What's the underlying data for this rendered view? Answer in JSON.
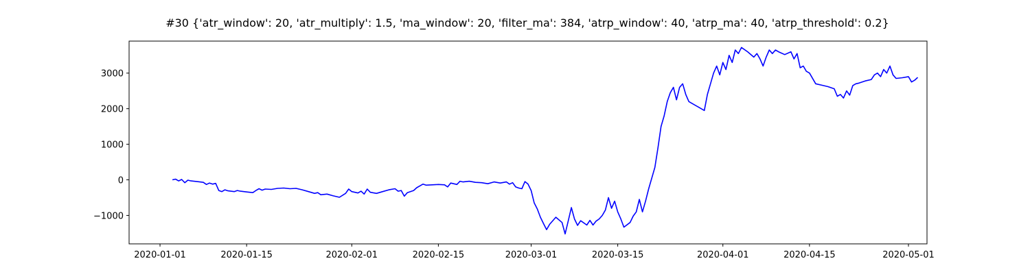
{
  "chart_data": {
    "type": "line",
    "title": "#30 {'atr_window': 20, 'atr_multiply': 1.5, 'ma_window': 20, 'filter_ma': 384, 'atrp_window': 40, 'atrp_ma': 40, 'atrp_threshold': 0.2}",
    "xlabel": "",
    "ylabel": "",
    "grid": false,
    "legend": "none",
    "xlim": [
      "2019-12-27",
      "2020-05-04"
    ],
    "ylim": [
      -1800,
      3900
    ],
    "xticks": [
      "2020-01-01",
      "2020-01-15",
      "2020-02-01",
      "2020-02-15",
      "2020-03-01",
      "2020-03-15",
      "2020-04-01",
      "2020-04-15",
      "2020-05-01"
    ],
    "yticks": [
      -1000,
      0,
      1000,
      2000,
      3000
    ],
    "ytick_labels": [
      "−1000",
      "0",
      "1000",
      "2000",
      "3000"
    ],
    "series": [
      {
        "color": "#0000ff",
        "points": [
          [
            "2020-01-03",
            0
          ],
          [
            "2020-01-03T12",
            20
          ],
          [
            "2020-01-04",
            -30
          ],
          [
            "2020-01-04T12",
            10
          ],
          [
            "2020-01-05",
            -80
          ],
          [
            "2020-01-05T12",
            -10
          ],
          [
            "2020-01-06",
            -30
          ],
          [
            "2020-01-07",
            -50
          ],
          [
            "2020-01-08",
            -70
          ],
          [
            "2020-01-08T12",
            -130
          ],
          [
            "2020-01-09",
            -90
          ],
          [
            "2020-01-09T12",
            -120
          ],
          [
            "2020-01-10",
            -100
          ],
          [
            "2020-01-10T12",
            -300
          ],
          [
            "2020-01-11",
            -330
          ],
          [
            "2020-01-11T12",
            -280
          ],
          [
            "2020-01-12",
            -310
          ],
          [
            "2020-01-13",
            -330
          ],
          [
            "2020-01-13T12",
            -300
          ],
          [
            "2020-01-14",
            -320
          ],
          [
            "2020-01-15",
            -340
          ],
          [
            "2020-01-16",
            -360
          ],
          [
            "2020-01-16T12",
            -300
          ],
          [
            "2020-01-17",
            -250
          ],
          [
            "2020-01-17T12",
            -290
          ],
          [
            "2020-01-18",
            -260
          ],
          [
            "2020-01-19",
            -270
          ],
          [
            "2020-01-20",
            -240
          ],
          [
            "2020-01-21",
            -230
          ],
          [
            "2020-01-22",
            -250
          ],
          [
            "2020-01-23",
            -240
          ],
          [
            "2020-01-24",
            -280
          ],
          [
            "2020-01-25",
            -330
          ],
          [
            "2020-01-26",
            -380
          ],
          [
            "2020-01-26T12",
            -360
          ],
          [
            "2020-01-27",
            -420
          ],
          [
            "2020-01-28",
            -400
          ],
          [
            "2020-01-29",
            -450
          ],
          [
            "2020-01-30",
            -490
          ],
          [
            "2020-01-31",
            -380
          ],
          [
            "2020-01-31T12",
            -260
          ],
          [
            "2020-02-01",
            -330
          ],
          [
            "2020-02-02",
            -370
          ],
          [
            "2020-02-02T12",
            -320
          ],
          [
            "2020-02-03",
            -400
          ],
          [
            "2020-02-03T12",
            -260
          ],
          [
            "2020-02-04",
            -350
          ],
          [
            "2020-02-05",
            -380
          ],
          [
            "2020-02-06",
            -330
          ],
          [
            "2020-02-07",
            -280
          ],
          [
            "2020-02-08",
            -250
          ],
          [
            "2020-02-08T12",
            -320
          ],
          [
            "2020-02-09",
            -300
          ],
          [
            "2020-02-09T12",
            -460
          ],
          [
            "2020-02-10",
            -360
          ],
          [
            "2020-02-11",
            -300
          ],
          [
            "2020-02-11T12",
            -220
          ],
          [
            "2020-02-12",
            -170
          ],
          [
            "2020-02-12T12",
            -120
          ],
          [
            "2020-02-13",
            -150
          ],
          [
            "2020-02-14",
            -140
          ],
          [
            "2020-02-15",
            -130
          ],
          [
            "2020-02-16",
            -140
          ],
          [
            "2020-02-16T12",
            -200
          ],
          [
            "2020-02-17",
            -90
          ],
          [
            "2020-02-18",
            -130
          ],
          [
            "2020-02-18T12",
            -40
          ],
          [
            "2020-02-19",
            -60
          ],
          [
            "2020-02-20",
            -40
          ],
          [
            "2020-02-21",
            -70
          ],
          [
            "2020-02-22",
            -80
          ],
          [
            "2020-02-23",
            -110
          ],
          [
            "2020-02-24",
            -60
          ],
          [
            "2020-02-25",
            -90
          ],
          [
            "2020-02-26",
            -60
          ],
          [
            "2020-02-26T12",
            -120
          ],
          [
            "2020-02-27",
            -80
          ],
          [
            "2020-02-27T12",
            -200
          ],
          [
            "2020-02-28",
            -230
          ],
          [
            "2020-02-28T12",
            -250
          ],
          [
            "2020-02-29",
            -50
          ],
          [
            "2020-02-29T12",
            -120
          ],
          [
            "2020-03-01",
            -300
          ],
          [
            "2020-03-01T12",
            -650
          ],
          [
            "2020-03-02",
            -820
          ],
          [
            "2020-03-02T12",
            -1050
          ],
          [
            "2020-03-03",
            -1230
          ],
          [
            "2020-03-03T12",
            -1400
          ],
          [
            "2020-03-04",
            -1250
          ],
          [
            "2020-03-05",
            -1050
          ],
          [
            "2020-03-06",
            -1200
          ],
          [
            "2020-03-06T12",
            -1520
          ],
          [
            "2020-03-07",
            -1150
          ],
          [
            "2020-03-07T12",
            -780
          ],
          [
            "2020-03-08",
            -1100
          ],
          [
            "2020-03-08T12",
            -1280
          ],
          [
            "2020-03-09",
            -1150
          ],
          [
            "2020-03-10",
            -1270
          ],
          [
            "2020-03-10T12",
            -1140
          ],
          [
            "2020-03-11",
            -1270
          ],
          [
            "2020-03-11T12",
            -1160
          ],
          [
            "2020-03-12",
            -1100
          ],
          [
            "2020-03-12T12",
            -1000
          ],
          [
            "2020-03-13",
            -850
          ],
          [
            "2020-03-13T12",
            -500
          ],
          [
            "2020-03-14",
            -800
          ],
          [
            "2020-03-14T12",
            -600
          ],
          [
            "2020-03-15",
            -900
          ],
          [
            "2020-03-15T12",
            -1100
          ],
          [
            "2020-03-16",
            -1330
          ],
          [
            "2020-03-17",
            -1200
          ],
          [
            "2020-03-17T12",
            -1020
          ],
          [
            "2020-03-18",
            -900
          ],
          [
            "2020-03-18T12",
            -550
          ],
          [
            "2020-03-19",
            -900
          ],
          [
            "2020-03-19T12",
            -600
          ],
          [
            "2020-03-20",
            -250
          ],
          [
            "2020-03-21",
            350
          ],
          [
            "2020-03-21T12",
            900
          ],
          [
            "2020-03-22",
            1500
          ],
          [
            "2020-03-22T12",
            1800
          ],
          [
            "2020-03-23",
            2200
          ],
          [
            "2020-03-23T12",
            2450
          ],
          [
            "2020-03-24",
            2600
          ],
          [
            "2020-03-24T12",
            2250
          ],
          [
            "2020-03-25",
            2600
          ],
          [
            "2020-03-25T12",
            2700
          ],
          [
            "2020-03-26",
            2400
          ],
          [
            "2020-03-26T12",
            2200
          ],
          [
            "2020-03-27",
            2150
          ],
          [
            "2020-03-28",
            2050
          ],
          [
            "2020-03-29",
            1950
          ],
          [
            "2020-03-29T12",
            2400
          ],
          [
            "2020-03-30",
            2700
          ],
          [
            "2020-03-30T12",
            3000
          ],
          [
            "2020-03-31",
            3200
          ],
          [
            "2020-03-31T12",
            2950
          ],
          [
            "2020-04-01",
            3300
          ],
          [
            "2020-04-01T12",
            3100
          ],
          [
            "2020-04-02",
            3500
          ],
          [
            "2020-04-02T12",
            3300
          ],
          [
            "2020-04-03",
            3650
          ],
          [
            "2020-04-03T12",
            3550
          ],
          [
            "2020-04-04",
            3720
          ],
          [
            "2020-04-05",
            3600
          ],
          [
            "2020-04-06",
            3450
          ],
          [
            "2020-04-06T12",
            3550
          ],
          [
            "2020-04-07",
            3400
          ],
          [
            "2020-04-07T12",
            3200
          ],
          [
            "2020-04-08",
            3450
          ],
          [
            "2020-04-08T12",
            3650
          ],
          [
            "2020-04-09",
            3550
          ],
          [
            "2020-04-09T12",
            3650
          ],
          [
            "2020-04-10",
            3600
          ],
          [
            "2020-04-11",
            3520
          ],
          [
            "2020-04-12",
            3600
          ],
          [
            "2020-04-12T12",
            3400
          ],
          [
            "2020-04-13",
            3550
          ],
          [
            "2020-04-13T12",
            3150
          ],
          [
            "2020-04-14",
            3200
          ],
          [
            "2020-04-14T12",
            3050
          ],
          [
            "2020-04-15",
            3000
          ],
          [
            "2020-04-16",
            2700
          ],
          [
            "2020-04-17",
            2660
          ],
          [
            "2020-04-18",
            2620
          ],
          [
            "2020-04-19",
            2560
          ],
          [
            "2020-04-19T12",
            2350
          ],
          [
            "2020-04-20",
            2400
          ],
          [
            "2020-04-20T12",
            2300
          ],
          [
            "2020-04-21",
            2500
          ],
          [
            "2020-04-21T12",
            2380
          ],
          [
            "2020-04-22",
            2650
          ],
          [
            "2020-04-22T12",
            2700
          ],
          [
            "2020-04-23",
            2720
          ],
          [
            "2020-04-24",
            2780
          ],
          [
            "2020-04-25",
            2820
          ],
          [
            "2020-04-25T12",
            2950
          ],
          [
            "2020-04-26",
            3000
          ],
          [
            "2020-04-26T12",
            2900
          ],
          [
            "2020-04-27",
            3100
          ],
          [
            "2020-04-27T12",
            3000
          ],
          [
            "2020-04-28",
            3200
          ],
          [
            "2020-04-28T12",
            2950
          ],
          [
            "2020-04-29",
            2850
          ],
          [
            "2020-04-30",
            2870
          ],
          [
            "2020-05-01",
            2900
          ],
          [
            "2020-05-01T12",
            2750
          ],
          [
            "2020-05-02",
            2800
          ],
          [
            "2020-05-02T12",
            2880
          ]
        ]
      }
    ]
  }
}
